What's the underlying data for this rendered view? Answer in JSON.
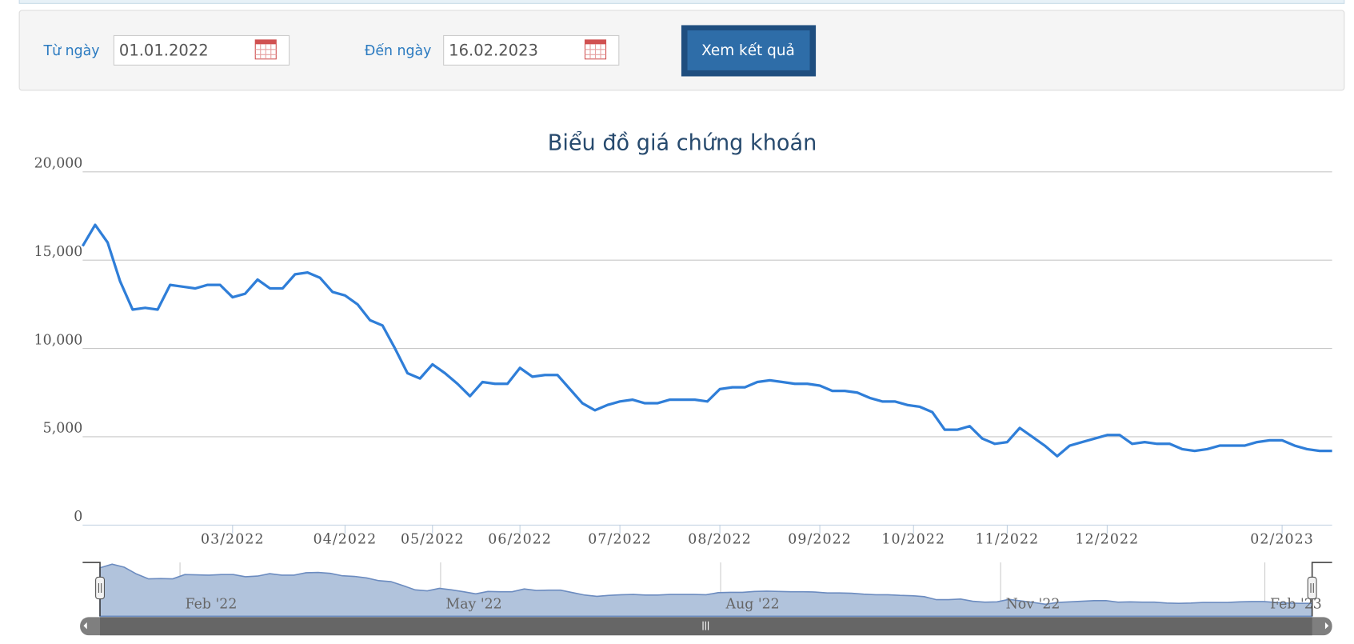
{
  "form": {
    "from_label": "Từ ngày",
    "from_value": "01.01.2022",
    "to_label": "Đến ngày",
    "to_value": "16.02.2023",
    "button": "Xem kết quả"
  },
  "chart_data": {
    "type": "line",
    "title": "Biểu đồ giá chứng khoán",
    "color": "#2f7ed8",
    "grid": true,
    "values": [
      15800,
      17000,
      16000,
      13800,
      12200,
      12300,
      12200,
      13600,
      13500,
      13400,
      13600,
      13600,
      12900,
      13100,
      13900,
      13400,
      13400,
      14200,
      14300,
      14000,
      13200,
      13000,
      12500,
      11600,
      11300,
      10000,
      8600,
      8300,
      9100,
      8600,
      8000,
      7300,
      8100,
      8000,
      8000,
      8900,
      8400,
      8500,
      8500,
      7700,
      6900,
      6500,
      6800,
      7000,
      7100,
      6900,
      6900,
      7100,
      7100,
      7100,
      7000,
      7700,
      7800,
      7800,
      8100,
      8200,
      8100,
      8000,
      8000,
      7900,
      7600,
      7600,
      7500,
      7200,
      7000,
      7000,
      6800,
      6700,
      6400,
      5400,
      5400,
      5600,
      4900,
      4600,
      4700,
      5500,
      5000,
      4500,
      3900,
      4500,
      4700,
      4900,
      5100,
      5100,
      4600,
      4700,
      4600,
      4600,
      4300,
      4200,
      4300,
      4500,
      4500,
      4500,
      4700,
      4800,
      4800,
      4500,
      4300,
      4200,
      4200
    ],
    "xlim": [
      0,
      100
    ],
    "xticks": [
      {
        "value": 12,
        "label": "03/2022"
      },
      {
        "value": 21,
        "label": "04/2022"
      },
      {
        "value": 28,
        "label": "05/2022"
      },
      {
        "value": 35,
        "label": "06/2022"
      },
      {
        "value": 43,
        "label": "07/2022"
      },
      {
        "value": 51,
        "label": "08/2022"
      },
      {
        "value": 59,
        "label": "09/2022"
      },
      {
        "value": 66.5,
        "label": "10/2022"
      },
      {
        "value": 74,
        "label": "11/2022"
      },
      {
        "value": 82,
        "label": "12/2022"
      },
      {
        "value": 96,
        "label": "02/2023"
      }
    ],
    "ylim": [
      0,
      20000
    ],
    "yticks": [
      0,
      {
        "value": 5000,
        "label": "5,000"
      },
      {
        "value": 10000,
        "label": "10,000"
      },
      {
        "value": 15000,
        "label": "15,000"
      },
      {
        "value": 20000,
        "label": "20,000"
      }
    ],
    "navigator": {
      "xticks": [
        {
          "value": 6.6,
          "label": "Feb '22"
        },
        {
          "value": 28.1,
          "label": "May '22"
        },
        {
          "value": 51.2,
          "label": "Aug '22"
        },
        {
          "value": 74.3,
          "label": "Nov '22"
        },
        {
          "value": 96.1,
          "label": "Feb '23"
        }
      ]
    }
  }
}
